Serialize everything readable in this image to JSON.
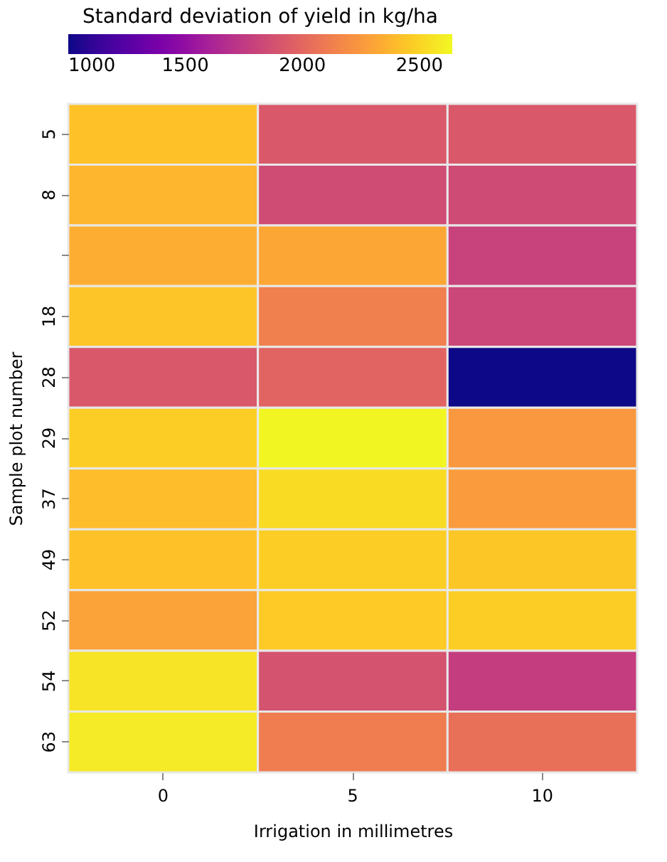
{
  "chart_data": {
    "type": "heatmap",
    "xlabel": "Irrigation in millimetres",
    "ylabel": "Sample plot number",
    "clabel": "Standard deviation of yield in kg/ha",
    "categories": [
      "0",
      "5",
      "10"
    ],
    "y_categories": [
      "5",
      "8",
      null,
      "18",
      "28",
      "29",
      "37",
      "49",
      "52",
      "54",
      "63"
    ],
    "cells": [
      [
        2430,
        1920,
        1920
      ],
      [
        2380,
        1850,
        1840
      ],
      [
        2345,
        2310,
        1800
      ],
      [
        2440,
        2130,
        1820
      ],
      [
        1920,
        1985,
        1000
      ],
      [
        2475,
        2630,
        2245
      ],
      [
        2410,
        2525,
        2260
      ],
      [
        2430,
        2475,
        2445
      ],
      [
        2295,
        2460,
        2475
      ],
      [
        2560,
        1885,
        1770
      ],
      [
        2590,
        2115,
        2050
      ]
    ],
    "clim": [
      1000,
      2640
    ],
    "cticks": [
      1000,
      1500,
      2000,
      2500
    ],
    "grid": false
  }
}
